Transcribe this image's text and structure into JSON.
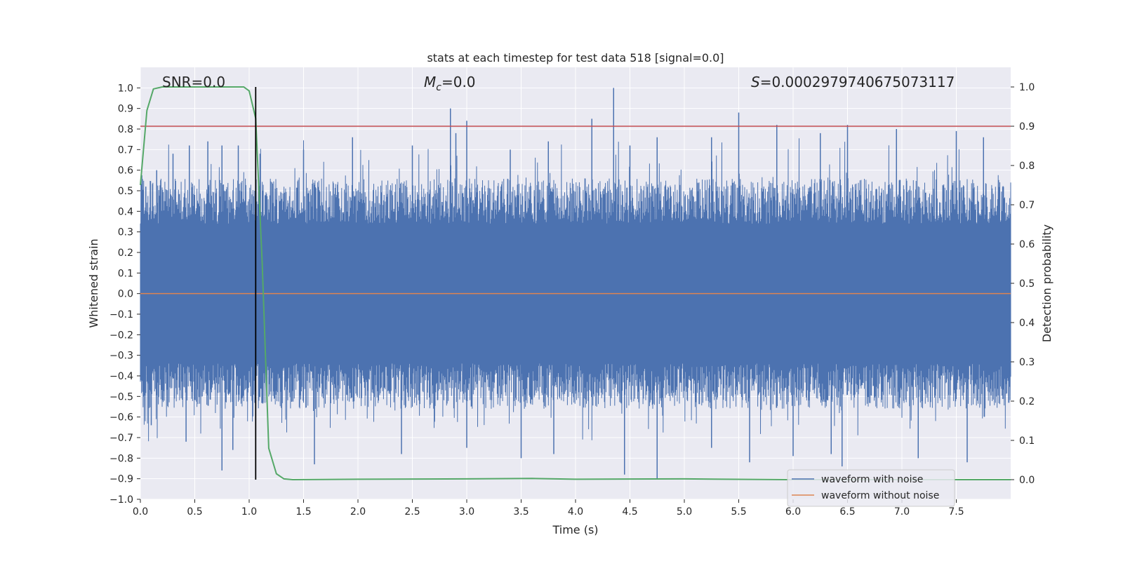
{
  "chart_data": {
    "type": "line",
    "title": "stats at each timestep for test data 518 [signal=0.0]",
    "xlabel": "Time (s)",
    "ylabel": "Whitened strain",
    "ylabel_right": "Detection probability",
    "xlim": [
      0.0,
      8.0
    ],
    "ylim": [
      -1.0,
      1.1
    ],
    "ylim_right": [
      -0.05,
      1.05
    ],
    "x_ticks": [
      "0.0",
      "0.5",
      "1.0",
      "1.5",
      "2.0",
      "2.5",
      "3.0",
      "3.5",
      "4.0",
      "4.5",
      "5.0",
      "5.5",
      "6.0",
      "6.5",
      "7.0",
      "7.5"
    ],
    "y_ticks": [
      "1.0",
      "0.9",
      "0.8",
      "0.7",
      "0.6",
      "0.5",
      "0.4",
      "0.3",
      "0.2",
      "0.1",
      "0.0",
      "-0.1",
      "-0.2",
      "-0.3",
      "-0.4",
      "-0.5",
      "-0.6",
      "-0.7",
      "-0.8",
      "-0.9",
      "-1.0"
    ],
    "y_ticks_right": [
      "1.0",
      "0.9",
      "0.8",
      "0.7",
      "0.6",
      "0.5",
      "0.4",
      "0.3",
      "0.2",
      "0.1",
      "0.0"
    ],
    "grid": true,
    "legend_position": "lower-right",
    "annotations": {
      "snr": "SNR=0.0",
      "mc_symbol": "M",
      "mc_sub": "c",
      "mc_value": "=0.0",
      "s_symbol": "S",
      "s_value": "=0.0002979740675073117"
    },
    "series": [
      {
        "name": "waveform with noise",
        "color": "#4c72b0",
        "description": "dense noise envelope",
        "peaks_x": [
          0.05,
          0.15,
          0.3,
          0.45,
          0.62,
          0.75,
          0.9,
          1.1,
          1.5,
          1.95,
          2.5,
          2.85,
          2.9,
          3.0,
          3.4,
          3.75,
          4.15,
          4.35,
          4.5,
          4.75,
          5.25,
          5.5,
          5.85,
          6.25,
          6.5,
          6.95,
          7.5,
          7.75
        ],
        "peaks_top": [
          0.52,
          0.6,
          0.68,
          0.72,
          0.74,
          0.72,
          0.72,
          0.68,
          0.7,
          0.76,
          0.72,
          0.9,
          0.78,
          0.84,
          0.7,
          0.74,
          0.85,
          1.0,
          0.72,
          0.76,
          0.76,
          0.88,
          0.82,
          0.78,
          0.82,
          0.8,
          0.79,
          0.76
        ],
        "troughs_x": [
          0.1,
          0.42,
          0.75,
          0.85,
          1.6,
          2.4,
          3.0,
          3.5,
          3.8,
          4.45,
          4.75,
          5.25,
          5.6,
          6.0,
          6.35,
          6.45,
          7.15,
          7.6
        ],
        "troughs_bottom": [
          -0.64,
          -0.72,
          -0.86,
          -0.76,
          -0.83,
          -0.78,
          -0.75,
          -0.8,
          -0.78,
          -0.88,
          -0.9,
          -0.75,
          -0.82,
          -0.79,
          -0.78,
          -0.84,
          -0.8,
          -0.82
        ]
      },
      {
        "name": "waveform without noise",
        "color": "#dd8452",
        "x": [
          0.0,
          8.0
        ],
        "y": [
          0.0,
          0.0
        ]
      },
      {
        "name": "",
        "color": "#55a868",
        "axis": "right",
        "x": [
          0.0,
          0.06,
          0.12,
          0.2,
          0.3,
          0.5,
          0.8,
          0.95,
          1.0,
          1.06,
          1.12,
          1.18,
          1.25,
          1.32,
          1.4,
          2.0,
          3.0,
          3.6,
          4.0,
          5.0,
          6.0,
          7.0,
          8.0
        ],
        "y": [
          0.75,
          0.94,
          0.995,
          1.0,
          1.0,
          1.0,
          1.0,
          1.0,
          0.99,
          0.92,
          0.55,
          0.08,
          0.015,
          0.002,
          0.0,
          0.001,
          0.002,
          0.003,
          0.001,
          0.002,
          0.0,
          0.0,
          0.0
        ]
      }
    ],
    "threshold_right": 0.9,
    "threshold_color": "#c44e52",
    "marker_x": 1.06,
    "marker_color": "#000000"
  }
}
